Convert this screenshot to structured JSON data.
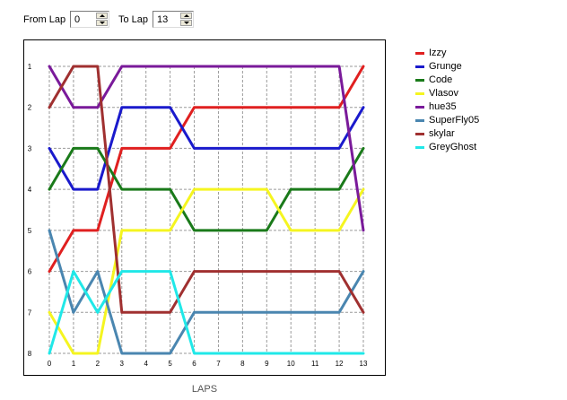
{
  "controls": {
    "from_label": "From Lap",
    "from_value": "0",
    "to_label": "To Lap",
    "to_value": "13"
  },
  "chart_data": {
    "type": "line",
    "xlabel": "LAPS",
    "ylabel": "",
    "x": [
      0,
      1,
      2,
      3,
      4,
      5,
      6,
      7,
      8,
      9,
      10,
      11,
      12,
      13
    ],
    "xlim": [
      0,
      13
    ],
    "ylim": [
      1,
      8
    ],
    "y_inverted": true,
    "yticks": [
      1,
      2,
      3,
      4,
      5,
      6,
      7,
      8
    ],
    "grid": true,
    "legend": "right",
    "series": [
      {
        "name": "Izzy",
        "color": "#e02020",
        "values": [
          6,
          5,
          5,
          3,
          3,
          3,
          2,
          2,
          2,
          2,
          2,
          2,
          2,
          1
        ]
      },
      {
        "name": "Grunge",
        "color": "#1a1acc",
        "values": [
          3,
          4,
          4,
          2,
          2,
          2,
          3,
          3,
          3,
          3,
          3,
          3,
          3,
          2
        ]
      },
      {
        "name": "Code",
        "color": "#1a7a1a",
        "values": [
          4,
          3,
          3,
          4,
          4,
          4,
          5,
          5,
          5,
          5,
          4,
          4,
          4,
          3
        ]
      },
      {
        "name": "Vlasov",
        "color": "#f5f520",
        "values": [
          7,
          8,
          8,
          5,
          5,
          5,
          4,
          4,
          4,
          4,
          5,
          5,
          5,
          4
        ]
      },
      {
        "name": "hue35",
        "color": "#7a1a9a",
        "values": [
          1,
          2,
          2,
          1,
          1,
          1,
          1,
          1,
          1,
          1,
          1,
          1,
          1,
          5
        ]
      },
      {
        "name": "SuperFly05",
        "color": "#4a86b0",
        "values": [
          5,
          7,
          6,
          8,
          8,
          8,
          7,
          7,
          7,
          7,
          7,
          7,
          7,
          6
        ]
      },
      {
        "name": "skylar",
        "color": "#a03030",
        "values": [
          2,
          1,
          1,
          7,
          7,
          7,
          6,
          6,
          6,
          6,
          6,
          6,
          6,
          7
        ]
      },
      {
        "name": "GreyGhost",
        "color": "#20e8e8",
        "values": [
          8,
          6,
          7,
          6,
          6,
          6,
          8,
          8,
          8,
          8,
          8,
          8,
          8,
          8
        ]
      }
    ]
  }
}
